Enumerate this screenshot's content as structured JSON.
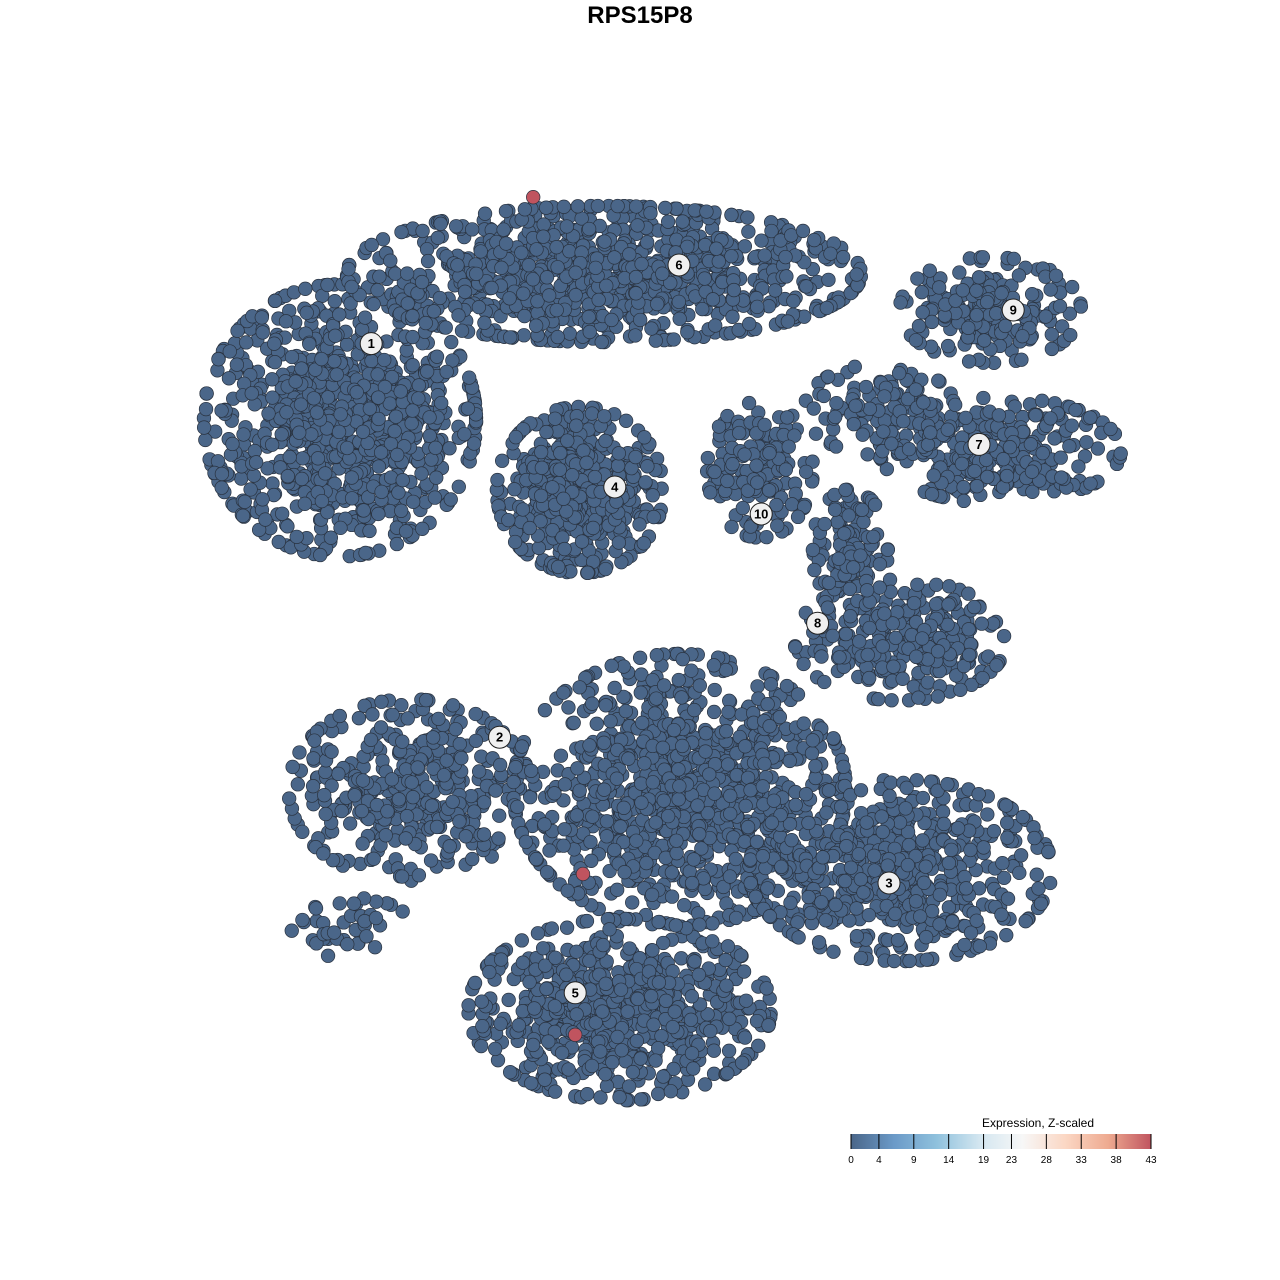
{
  "chart_data": {
    "type": "scatter",
    "title": "RPS15P8",
    "xlim": [
      -40,
      40
    ],
    "ylim": [
      -40,
      40
    ],
    "axes_visible": false,
    "grid": false,
    "point_color_low": "#4a6689",
    "point_color_high": "#c0545f",
    "point_stroke": "#2a3340",
    "cluster_blobs": [
      {
        "center": [
          -25,
          18.3
        ],
        "spread": [
          9,
          9
        ],
        "n": 900
      },
      {
        "center": [
          -3,
          30.5
        ],
        "spread": [
          17,
          4.5
        ],
        "n": 1000
      },
      {
        "center": [
          -5,
          12.5
        ],
        "spread": [
          5.5,
          5.5
        ],
        "n": 500
      },
      {
        "center": [
          29.2,
          27.5
        ],
        "spread": [
          6,
          3.5
        ],
        "n": 200
      },
      {
        "center": [
          30,
          15.8
        ],
        "spread": [
          8,
          3.5
        ],
        "n": 300
      },
      {
        "center": [
          20,
          19.2
        ],
        "spread": [
          5,
          3
        ],
        "n": 120
      },
      {
        "center": [
          10,
          14.2
        ],
        "spread": [
          3.5,
          4.5
        ],
        "n": 150
      },
      {
        "center": [
          21.7,
          0
        ],
        "spread": [
          7,
          4
        ],
        "n": 300
      },
      {
        "center": [
          17.5,
          7.5
        ],
        "spread": [
          2.5,
          4
        ],
        "n": 120
      },
      {
        "center": [
          -19.2,
          -12.5
        ],
        "spread": [
          8,
          6
        ],
        "n": 400
      },
      {
        "center": [
          3.3,
          -12.5
        ],
        "spread": [
          11,
          9
        ],
        "n": 1000
      },
      {
        "center": [
          21.7,
          -19.2
        ],
        "spread": [
          10,
          6
        ],
        "n": 600
      },
      {
        "center": [
          -1.7,
          -30.8
        ],
        "spread": [
          10,
          6
        ],
        "n": 700
      },
      {
        "center": [
          -24,
          -24
        ],
        "spread": [
          4,
          2
        ],
        "n": 40
      }
    ],
    "high_expression_points": [
      {
        "x": -8.9,
        "y": 36.9,
        "value": 43
      },
      {
        "x": -4.75,
        "y": -19.5,
        "value": 43
      },
      {
        "x": -5.4,
        "y": -32.9,
        "value": 43
      }
    ],
    "cluster_labels": [
      {
        "label": "1",
        "x": -22.4,
        "y": 24.7
      },
      {
        "label": "2",
        "x": -11.7,
        "y": -8.1
      },
      {
        "label": "3",
        "x": 20.75,
        "y": -20.25
      },
      {
        "label": "4",
        "x": -2.1,
        "y": 12.75
      },
      {
        "label": "5",
        "x": -5.4,
        "y": -29.4
      },
      {
        "label": "6",
        "x": 3.25,
        "y": 31.25
      },
      {
        "label": "7",
        "x": 28.25,
        "y": 16.3
      },
      {
        "label": "8",
        "x": 14.8,
        "y": 1.4
      },
      {
        "label": "9",
        "x": 31.1,
        "y": 27.5
      },
      {
        "label": "10",
        "x": 10.1,
        "y": 10.5
      }
    ],
    "legend": {
      "title": "Expression, Z-scaled",
      "placement": "bottom-right",
      "min": 0,
      "max": 43,
      "ticks": [
        0,
        4,
        9,
        14,
        19,
        23,
        28,
        33,
        38,
        43
      ],
      "colors": [
        "#4a6689",
        "#6b9ac8",
        "#8fc1dd",
        "#d3e6f0",
        "#f7f7f7",
        "#fbd7c4",
        "#eeaa90",
        "#c0545f"
      ]
    }
  }
}
